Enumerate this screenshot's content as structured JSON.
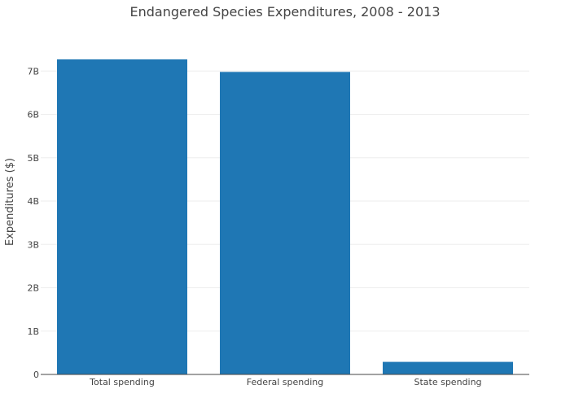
{
  "chart_data": {
    "type": "bar",
    "title": "Endangered Species Expenditures, 2008 - 2013",
    "xlabel": "",
    "ylabel": "Expenditures ($)",
    "categories": [
      "Total spending",
      "Federal spending",
      "State spending"
    ],
    "values": [
      7.27,
      6.98,
      0.29
    ],
    "value_units": "billions of dollars",
    "ylim": [
      0,
      7.7
    ],
    "yticks": [
      0,
      1,
      2,
      3,
      4,
      5,
      6,
      7
    ],
    "ytick_labels": [
      "0",
      "1B",
      "2B",
      "3B",
      "4B",
      "5B",
      "6B",
      "7B"
    ],
    "grid": true,
    "bar_color": "#1f77b4"
  }
}
